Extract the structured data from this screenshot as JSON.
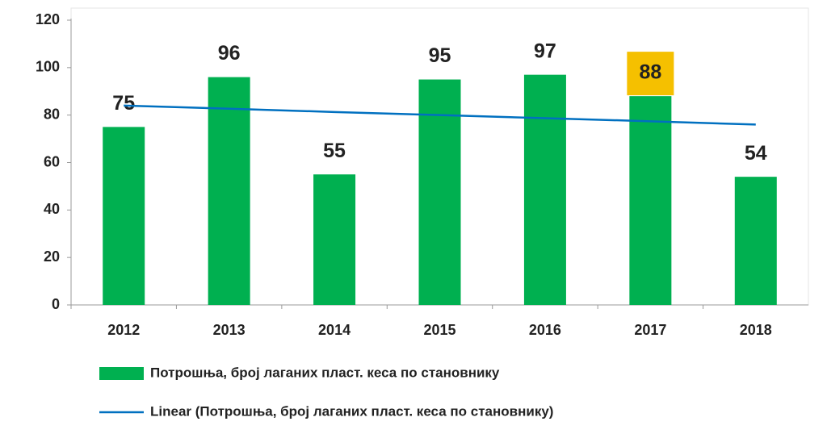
{
  "chart_data": {
    "type": "bar",
    "categories": [
      "2012",
      "2013",
      "2014",
      "2015",
      "2016",
      "2017",
      "2018"
    ],
    "series": [
      {
        "name": "Потрошња, број лаганих пласт. кеса по становнику",
        "type": "bar",
        "color": "#00b050",
        "values": [
          75,
          96,
          55,
          95,
          97,
          88,
          54
        ]
      },
      {
        "name": "Linear (Потрошња, број лаганих пласт. кеса по становнику)",
        "type": "line",
        "color": "#0070c0",
        "values": [
          84,
          82.7,
          81.3,
          80,
          78.7,
          77.4,
          76
        ]
      }
    ],
    "label_highlight": {
      "index": 5,
      "color": "#f5c000"
    },
    "ylim": [
      0,
      120
    ],
    "yticks": [
      0,
      20,
      40,
      60,
      80,
      100,
      120
    ],
    "grid": false
  }
}
